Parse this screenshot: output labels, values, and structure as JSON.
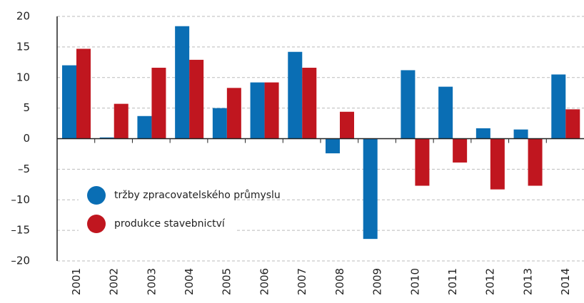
{
  "chart_data": {
    "type": "bar",
    "categories": [
      "2001",
      "2002",
      "2003",
      "2004",
      "2005",
      "2006",
      "2007",
      "2008",
      "2009",
      "2010",
      "2011",
      "2012",
      "2013",
      "2014"
    ],
    "series": [
      {
        "name": "tržby zpracovatelského průmyslu",
        "color": "#0a6eb4",
        "values": [
          12.0,
          0.2,
          3.7,
          18.4,
          5.0,
          9.2,
          14.2,
          -2.4,
          -16.4,
          11.2,
          8.5,
          1.7,
          1.5,
          10.5
        ]
      },
      {
        "name": "produkce stavebnictví",
        "color": "#c0161f",
        "values": [
          14.7,
          5.7,
          11.6,
          12.9,
          8.3,
          9.2,
          11.6,
          4.4,
          0,
          -7.7,
          -3.9,
          -8.3,
          -7.7,
          4.8
        ]
      }
    ],
    "ylim": [
      -20,
      20
    ],
    "yticks": [
      {
        "value": -20,
        "label": "–20"
      },
      {
        "value": -15,
        "label": "–15"
      },
      {
        "value": -10,
        "label": "–10"
      },
      {
        "value": -5,
        "label": "–5"
      },
      0,
      5,
      10,
      15,
      20
    ],
    "grid": true,
    "legend": "lower left"
  }
}
